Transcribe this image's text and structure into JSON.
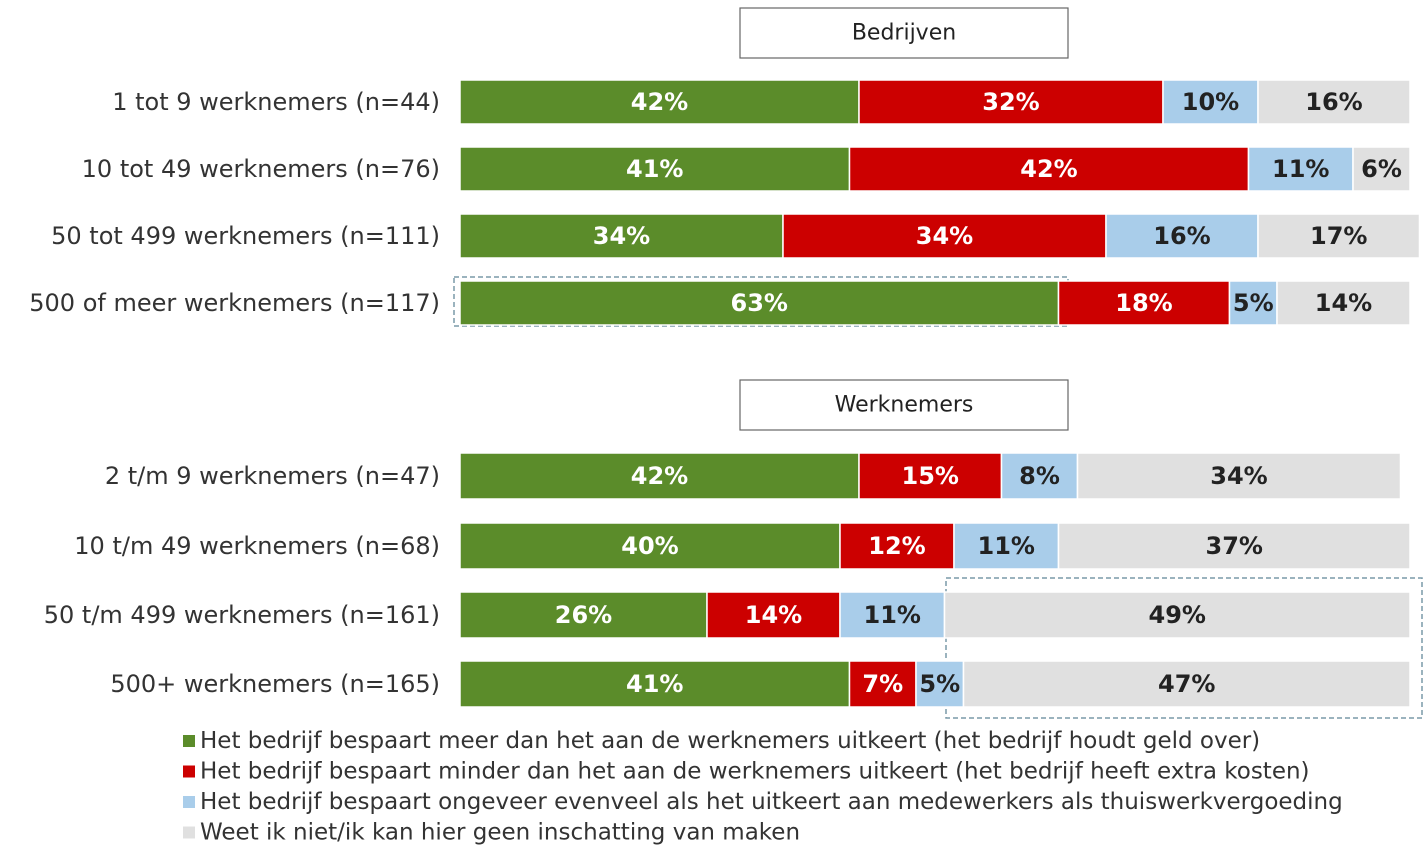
{
  "chart_data": {
    "type": "bar",
    "orientation": "horizontal",
    "stacked": true,
    "xlim": [
      0,
      100
    ],
    "panels": [
      {
        "title": "Bedrijven",
        "categories": [
          "1 tot 9 werknemers  (n=44)",
          "10 tot 49 werknemers  (n=76)",
          "50 tot 499 werknemers  (n=111)",
          "500 of meer werknemers  (n=117)"
        ]
      },
      {
        "title": "Werknemers",
        "categories": [
          "2 t/m 9 werknemers  (n=47)",
          "10 t/m 49 werknemers  (n=68)",
          "50 t/m 499 werknemers  (n=161)",
          "500+ werknemers  (n=165)"
        ]
      }
    ],
    "series": [
      {
        "name": "Het bedrijf bespaart meer dan het aan de werknemers uitkeert (het bedrijf houdt geld over)",
        "color": "#5b8c2a",
        "label_color": "#ffffff",
        "values": [
          [
            42,
            41,
            34,
            63
          ],
          [
            42,
            40,
            26,
            41
          ]
        ],
        "value_labels": [
          [
            "42%",
            "41%",
            "34%",
            "63%"
          ],
          [
            "42%",
            "40%",
            "26%",
            "41%"
          ]
        ]
      },
      {
        "name": "Het bedrijf bespaart minder dan het aan de werknemers uitkeert (het bedrijf heeft extra kosten)",
        "color": "#cc0000",
        "label_color": "#ffffff",
        "values": [
          [
            32,
            42,
            34,
            18
          ],
          [
            15,
            12,
            14,
            7
          ]
        ],
        "value_labels": [
          [
            "32%",
            "42%",
            "34%",
            "18%"
          ],
          [
            "15%",
            "12%",
            "14%",
            "7%"
          ]
        ]
      },
      {
        "name": "Het bedrijf bespaart ongeveer evenveel als het uitkeert aan medewerkers als thuiswerkvergoeding",
        "color": "#a9cdea",
        "label_color": "#222222",
        "values": [
          [
            10,
            11,
            16,
            5
          ],
          [
            8,
            11,
            11,
            5
          ]
        ],
        "value_labels": [
          [
            "10%",
            "11%",
            "16%",
            "5%"
          ],
          [
            "8%",
            "11%",
            "11%",
            "5%"
          ]
        ]
      },
      {
        "name": "Weet ik niet/ik kan hier geen inschatting van maken",
        "color": "#e0e0e0",
        "label_color": "#222222",
        "values": [
          [
            16,
            6,
            17,
            14
          ],
          [
            34,
            37,
            49,
            47
          ]
        ],
        "value_labels": [
          [
            "16%",
            "6%",
            "17%",
            "14%"
          ],
          [
            "34%",
            "37%",
            "49%",
            "47%"
          ]
        ]
      }
    ]
  }
}
